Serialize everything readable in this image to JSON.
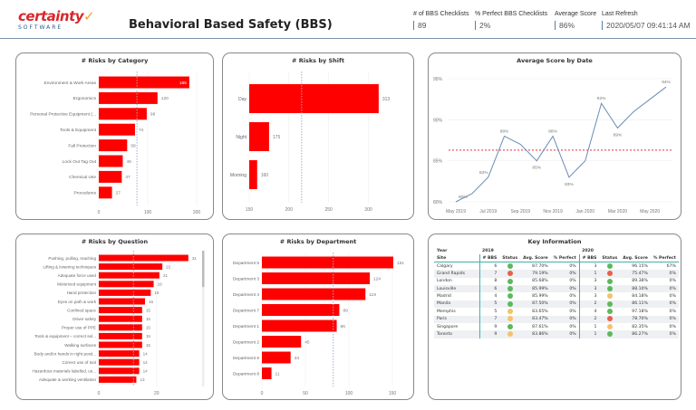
{
  "header": {
    "logo_text": "certainty",
    "logo_sub": "SOFTWARE",
    "title": "Behavioral Based Safety (BBS)",
    "kpis": [
      {
        "label": "# of BBS Checklists",
        "value": "89"
      },
      {
        "label": "% Perfect BBS Checklists",
        "value": "2%"
      },
      {
        "label": "Average Score",
        "value": "86%"
      },
      {
        "label": "Last Refresh",
        "value": "2020/05/07 09:41:14 AM"
      }
    ]
  },
  "colors": {
    "bar": "#ff0000",
    "line": "#6a8db5",
    "avg_line": "#e8303a",
    "good": "#5cb85c",
    "warn": "#f5c26b",
    "bad": "#e8604c"
  },
  "chart_data": [
    {
      "id": "category",
      "type": "bar",
      "orientation": "horizontal",
      "title": "# Risks by Category",
      "categories": [
        "Environment & Work Areas",
        "Ergonomics",
        "Personal Protective Equipment (...",
        "Tools & Equipment",
        "Fall Protection",
        "Lock Out Tag Out",
        "Chemical Use",
        "Procedures"
      ],
      "values": [
        185,
        120,
        98,
        74,
        58,
        49,
        47,
        27
      ],
      "xlim": [
        0,
        200
      ],
      "xticks": [
        "0",
        "100",
        "200"
      ],
      "average_line": 78
    },
    {
      "id": "shift",
      "type": "bar",
      "orientation": "horizontal",
      "title": "# Risks by Shift",
      "categories": [
        "Day",
        "Night",
        "Morning"
      ],
      "values": [
        313,
        175,
        160
      ],
      "xlim": [
        150,
        320
      ],
      "xticks": [
        "150",
        "200",
        "250",
        "300"
      ],
      "average_line": 216
    },
    {
      "id": "date",
      "type": "line",
      "title": "Average Score by Date",
      "x": [
        "May 2019",
        "Jun 2019",
        "Jul 2019",
        "Aug 2019",
        "Sep 2019",
        "Oct 2019",
        "Nov 2019",
        "Dec 2019",
        "Jan 2020",
        "Feb 2020",
        "Mar 2020",
        "Apr 2020",
        "May 2020",
        "Jun 2020"
      ],
      "values": [
        80,
        81,
        83,
        88,
        87,
        85,
        88,
        83,
        85,
        92,
        89,
        91,
        92.5,
        94
      ],
      "point_labels": [
        "80%",
        "",
        "83%",
        "88%",
        "",
        "85%",
        "88%",
        "83%",
        "",
        "92%",
        "89%",
        "",
        "",
        "94%"
      ],
      "xticks": [
        "May 2019",
        "Jul 2019",
        "Sep 2019",
        "Nov 2019",
        "Jan 2020",
        "Mar 2020",
        "May 2020"
      ],
      "yticks": [
        "80%",
        "85%",
        "90%",
        "95%"
      ],
      "ylim": [
        80,
        95
      ],
      "average_line": 86.3
    },
    {
      "id": "question",
      "type": "bar",
      "orientation": "horizontal",
      "title": "# Risks by Question",
      "categories": [
        "Pushing, pulling, reaching",
        "Lifting & lowering techniques",
        "Adequate force used",
        "Motorized equipment",
        "Hand protection",
        "Eyes on path & work",
        "Confined space",
        "Driver safety",
        "Proper use of PPE",
        "Tools & equipment – correct sel...",
        "Walking surfaces",
        "Body and/or hands in right posit...",
        "Correct use of tool",
        "Hazardous materials labelled, us...",
        "Adequate & working ventilation"
      ],
      "values": [
        31,
        22,
        21,
        19,
        18,
        16,
        15,
        15,
        15,
        15,
        15,
        14,
        14,
        14,
        13
      ],
      "xlim": [
        0,
        32
      ],
      "xticks": [
        "0",
        "20"
      ],
      "average_line": 12
    },
    {
      "id": "department",
      "type": "bar",
      "orientation": "horizontal",
      "title": "# Risks by Department",
      "categories": [
        "Department 5",
        "Department 3",
        "Department 4",
        "Department 7",
        "Department 1",
        "Department 2",
        "Department 6",
        "Department 8"
      ],
      "values": [
        151,
        124,
        119,
        89,
        86,
        45,
        33,
        11
      ],
      "xlim": [
        0,
        150
      ],
      "xticks": [
        "0",
        "50",
        "100",
        "150"
      ],
      "average_line": 82
    }
  ],
  "key_info": {
    "title": "Key Information",
    "year_label": "Year",
    "site_label": "Site",
    "years": [
      "2019",
      "2020"
    ],
    "columns": [
      "# BBS",
      "Status",
      "Avg. Score",
      "% Perfect"
    ],
    "rows": [
      {
        "site": "Calgary",
        "y2019": [
          "6",
          "good",
          "87.70%",
          "0%"
        ],
        "y2020": [
          "3",
          "good",
          "96.15%",
          "67%"
        ]
      },
      {
        "site": "Grand Rapids",
        "y2019": [
          "7",
          "bad",
          "79.19%",
          "0%"
        ],
        "y2020": [
          "1",
          "bad",
          "75.47%",
          "0%"
        ]
      },
      {
        "site": "London",
        "y2019": [
          "8",
          "good",
          "85.68%",
          "0%"
        ],
        "y2020": [
          "3",
          "good",
          "89.38%",
          "0%"
        ]
      },
      {
        "site": "Louisville",
        "y2019": [
          "6",
          "good",
          "85.99%",
          "0%"
        ],
        "y2020": [
          "3",
          "good",
          "88.10%",
          "0%"
        ]
      },
      {
        "site": "Madrid",
        "y2019": [
          "4",
          "good",
          "85.99%",
          "0%"
        ],
        "y2020": [
          "3",
          "warn",
          "84.18%",
          "0%"
        ]
      },
      {
        "site": "Manila",
        "y2019": [
          "5",
          "good",
          "87.50%",
          "0%"
        ],
        "y2020": [
          "2",
          "good",
          "86.11%",
          "0%"
        ]
      },
      {
        "site": "Memphis",
        "y2019": [
          "5",
          "warn",
          "83.65%",
          "0%"
        ],
        "y2020": [
          "4",
          "good",
          "97.18%",
          "0%"
        ]
      },
      {
        "site": "Paris",
        "y2019": [
          "7",
          "warn",
          "83.47%",
          "0%"
        ],
        "y2020": [
          "2",
          "bad",
          "78.70%",
          "0%"
        ]
      },
      {
        "site": "Singapore",
        "y2019": [
          "9",
          "good",
          "87.61%",
          "0%"
        ],
        "y2020": [
          "1",
          "warn",
          "82.35%",
          "0%"
        ]
      },
      {
        "site": "Toronto",
        "y2019": [
          "9",
          "warn",
          "83.86%",
          "0%"
        ],
        "y2020": [
          "1",
          "good",
          "86.27%",
          "0%"
        ]
      }
    ]
  }
}
